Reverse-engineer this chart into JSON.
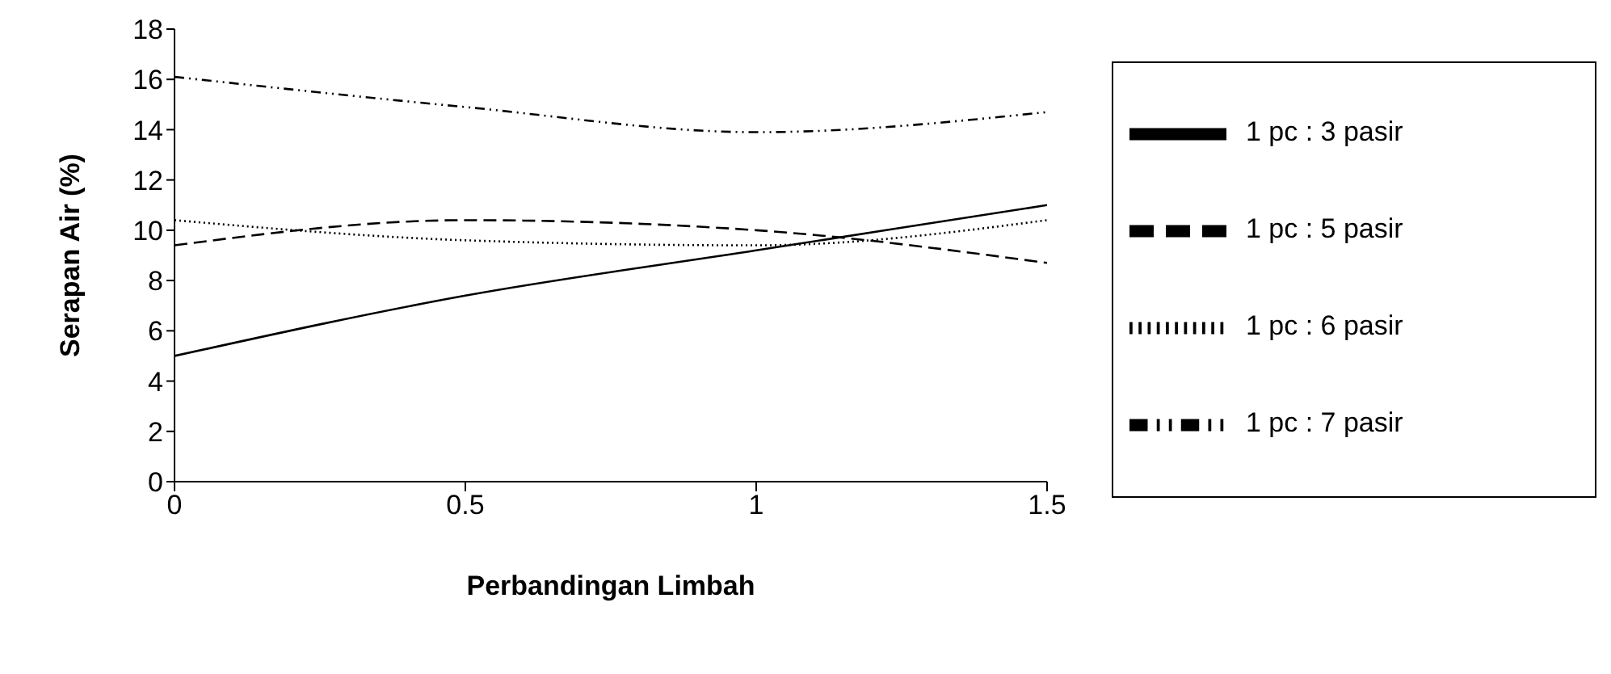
{
  "chart_data": {
    "type": "line",
    "xlabel": "Perbandingan Limbah",
    "ylabel": "Serapan Air (%)",
    "x": [
      0,
      0.5,
      1,
      1.5
    ],
    "series": [
      {
        "name": "1 pc : 3 pasir",
        "color": "#000000",
        "line_style": "solid",
        "values": [
          5.0,
          7.4,
          9.2,
          11.0
        ]
      },
      {
        "name": "1 pc : 5 pasir",
        "color": "#000000",
        "line_style": "dashed",
        "values": [
          9.4,
          10.4,
          10.0,
          8.7
        ]
      },
      {
        "name": "1 pc : 6 pasir",
        "color": "#000000",
        "line_style": "dotted",
        "values": [
          10.4,
          9.6,
          9.4,
          10.4
        ]
      },
      {
        "name": "1 pc : 7 pasir",
        "color": "#000000",
        "line_style": "dashdot",
        "values": [
          16.1,
          14.9,
          13.9,
          14.7
        ]
      }
    ],
    "xlim": [
      0,
      1.5
    ],
    "xticks": [
      0,
      0.5,
      1,
      1.5
    ],
    "ylim": [
      0,
      18
    ],
    "yticks": [
      0,
      2,
      4,
      6,
      8,
      10,
      12,
      14,
      16,
      18
    ],
    "grid": false,
    "legend": "right",
    "marker": "none"
  }
}
